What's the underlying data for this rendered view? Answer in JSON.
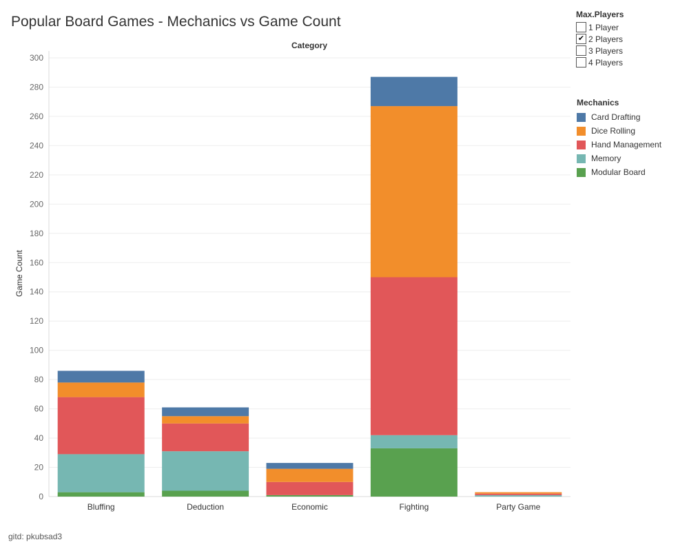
{
  "page": {
    "title": "Popular Board Games - Mechanics vs Game Count",
    "footer": "gitd: pkubsad3"
  },
  "filter": {
    "title": "Max.Players",
    "options": [
      {
        "label": "1 Player",
        "checked": false
      },
      {
        "label": "2 Players",
        "checked": true
      },
      {
        "label": "3 Players",
        "checked": false
      },
      {
        "label": "4 Players",
        "checked": false
      }
    ],
    "check_glyph": "✔"
  },
  "legend": {
    "title": "Mechanics",
    "items": [
      {
        "label": "Card Drafting",
        "color": "#4e79a7"
      },
      {
        "label": "Dice Rolling",
        "color": "#f28e2b"
      },
      {
        "label": "Hand Management",
        "color": "#e15759"
      },
      {
        "label": "Memory",
        "color": "#76b7b2"
      },
      {
        "label": "Modular Board",
        "color": "#59a14f"
      }
    ]
  },
  "chart_data": {
    "type": "bar",
    "stacked": true,
    "title": "Popular Board Games - Mechanics vs Game Count",
    "column_header": "Category",
    "xlabel": "",
    "ylabel": "Game Count",
    "categories": [
      "Bluffing",
      "Deduction",
      "Economic",
      "Fighting",
      "Party Game"
    ],
    "ylim": [
      0,
      300
    ],
    "yticks": [
      0,
      20,
      40,
      60,
      80,
      100,
      120,
      140,
      160,
      180,
      200,
      220,
      240,
      260,
      280,
      300
    ],
    "grid": true,
    "legend_position": "right",
    "series": [
      {
        "name": "Modular Board",
        "color": "#59a14f",
        "values": [
          3,
          4,
          1,
          33,
          0
        ]
      },
      {
        "name": "Memory",
        "color": "#76b7b2",
        "values": [
          26,
          27,
          0,
          9,
          1
        ]
      },
      {
        "name": "Hand Management",
        "color": "#e15759",
        "values": [
          39,
          19,
          9,
          108,
          1
        ]
      },
      {
        "name": "Dice Rolling",
        "color": "#f28e2b",
        "values": [
          10,
          5,
          9,
          117,
          1
        ]
      },
      {
        "name": "Card Drafting",
        "color": "#4e79a7",
        "values": [
          8,
          6,
          4,
          20,
          0
        ]
      }
    ]
  }
}
